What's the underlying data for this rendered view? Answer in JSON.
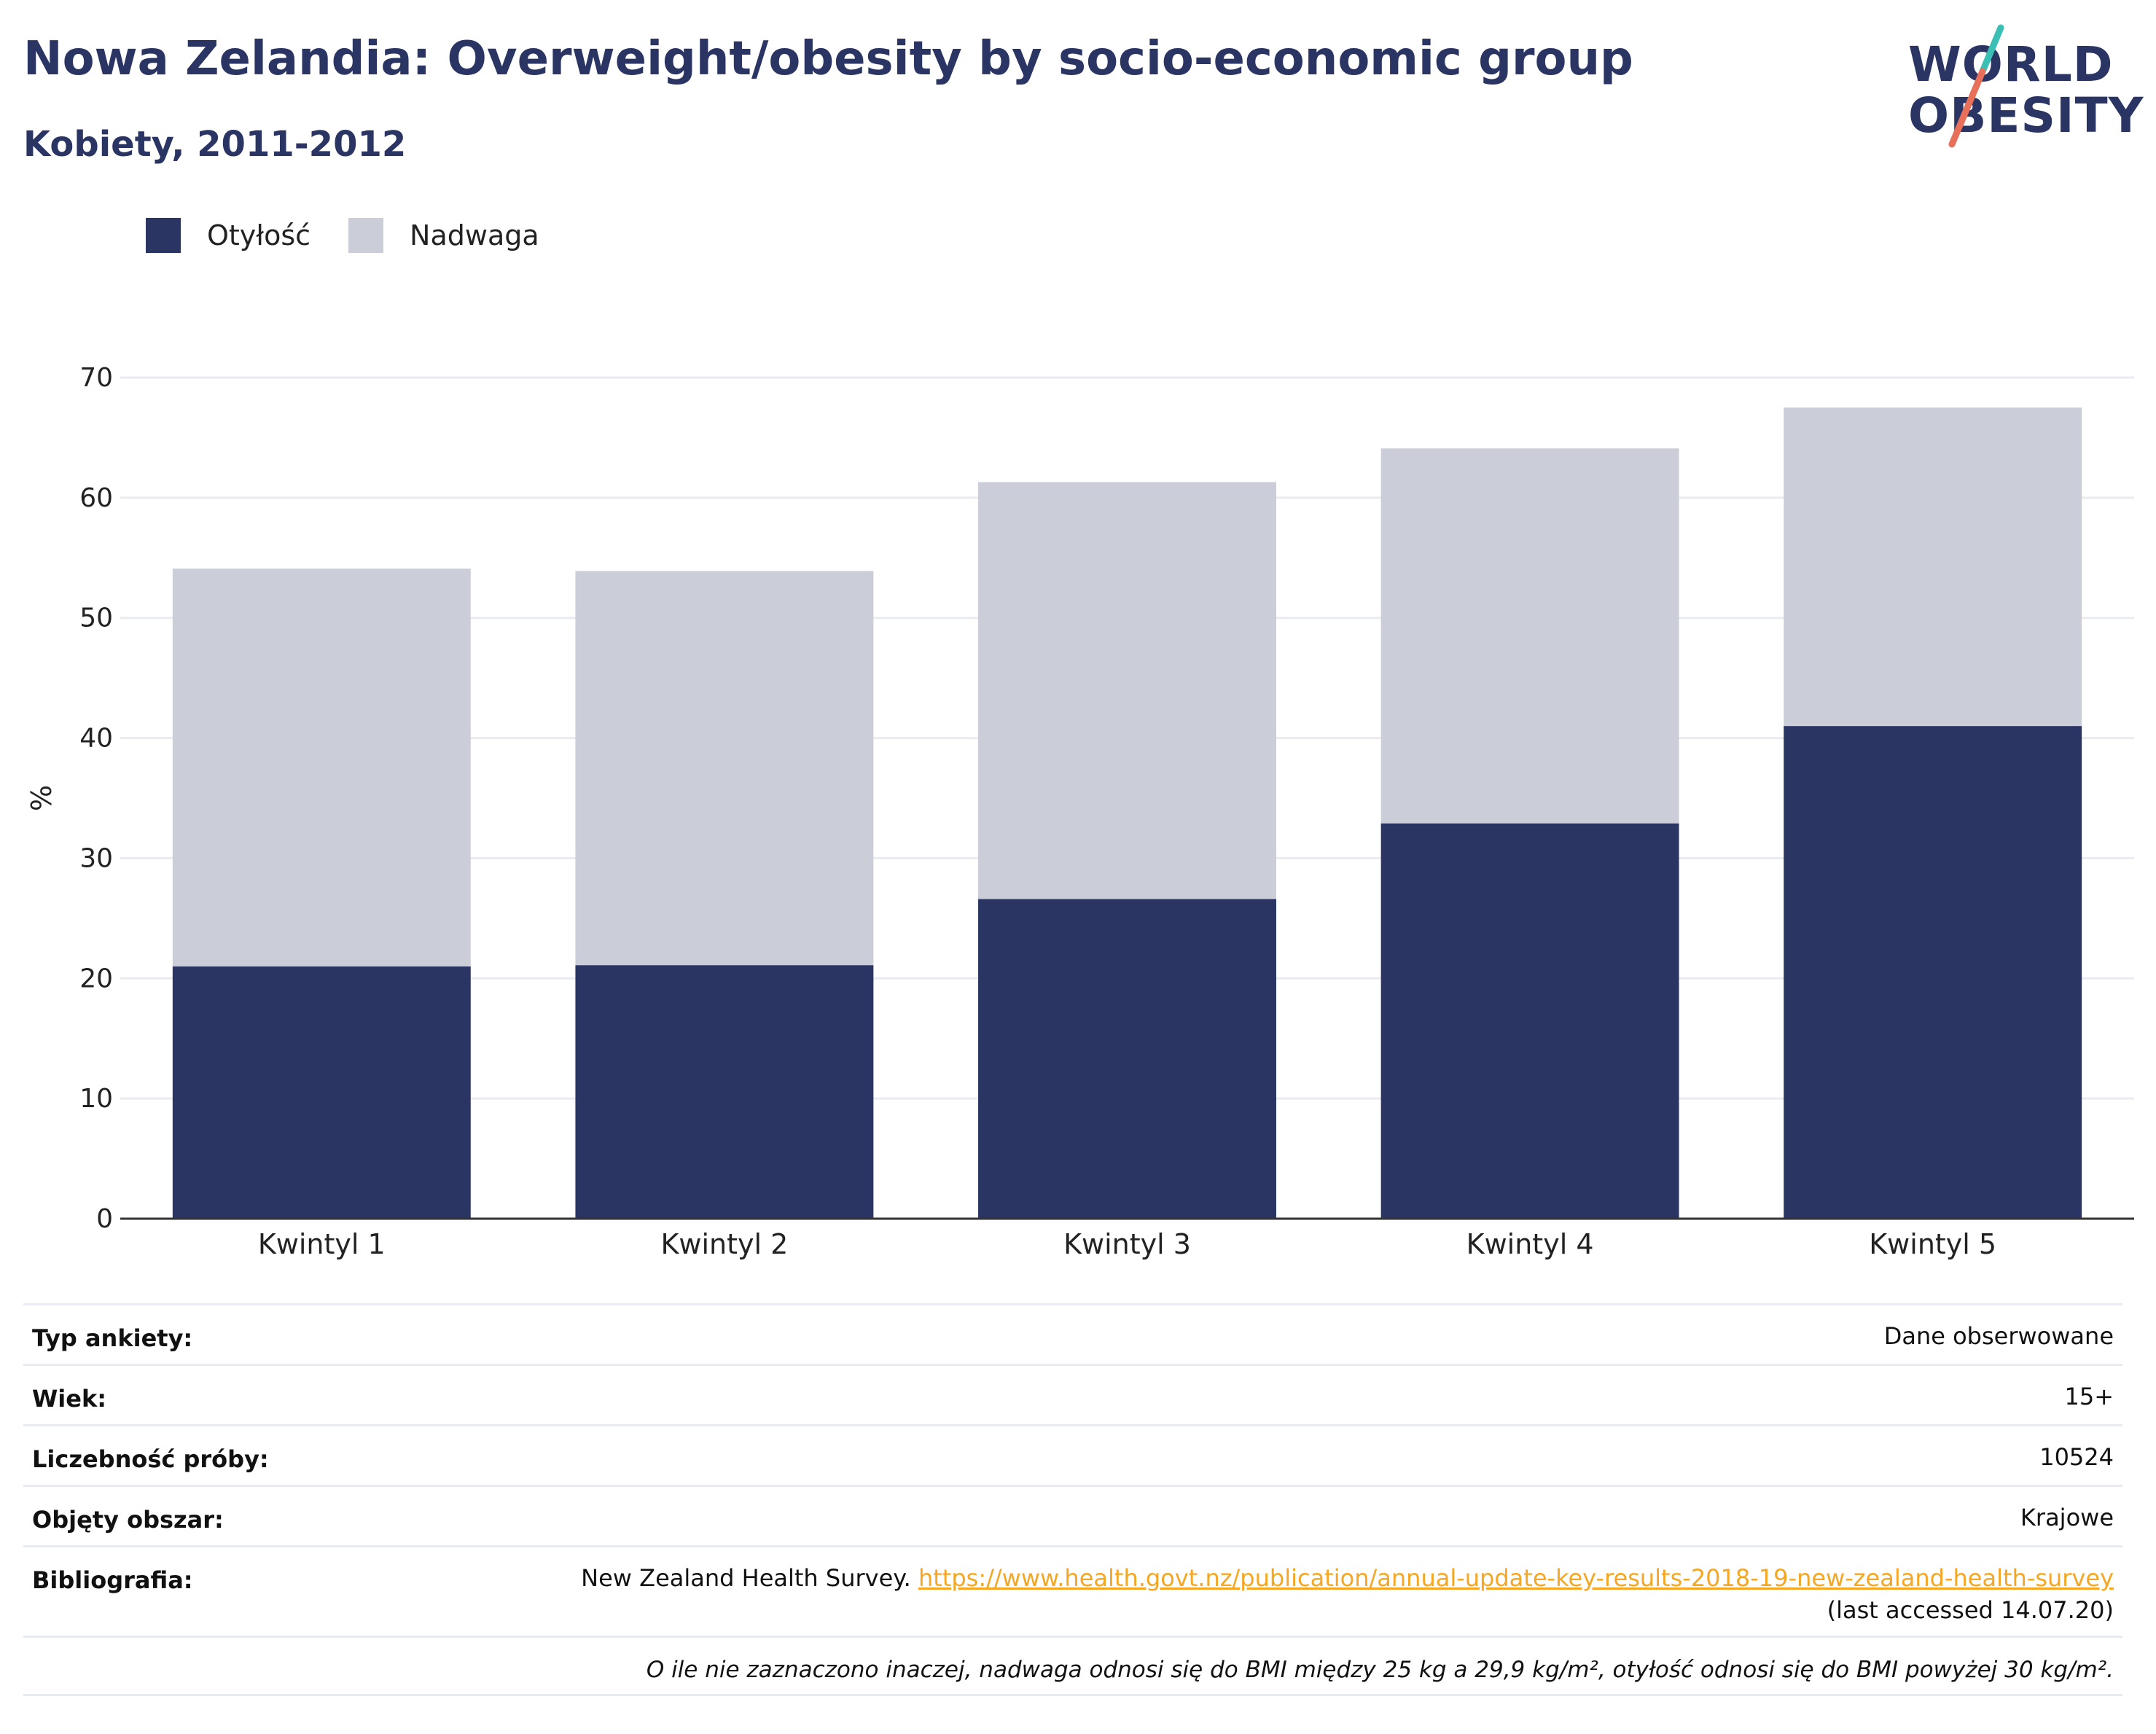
{
  "header": {
    "title": "Nowa Zelandia: Overweight/obesity by socio-economic group",
    "subtitle": "Kobiety, 2011-2012"
  },
  "logo": {
    "line1": "WORLD",
    "line2": "OBESITY",
    "slash_colors": [
      "#3bbfb5",
      "#e8705a"
    ]
  },
  "legend": [
    {
      "label": "Otyłość",
      "color": "#2a3563"
    },
    {
      "label": "Nadwaga",
      "color": "#cbcdd9"
    }
  ],
  "chart_data": {
    "type": "bar",
    "stacked": true,
    "categories": [
      "Kwintyl 1",
      "Kwintyl 2",
      "Kwintyl 3",
      "Kwintyl 4",
      "Kwintyl 5"
    ],
    "series": [
      {
        "name": "Otyłość",
        "color": "#2a3563",
        "values": [
          21.0,
          21.1,
          26.6,
          32.9,
          41.0
        ]
      },
      {
        "name": "Nadwaga",
        "color": "#cbcdd9",
        "values": [
          33.1,
          32.8,
          34.7,
          31.2,
          26.5
        ]
      }
    ],
    "ylabel": "%",
    "ylim": [
      0,
      70
    ],
    "yticks": [
      0,
      10,
      20,
      30,
      40,
      50,
      60,
      70
    ],
    "grid": true,
    "legend_position": "top-left"
  },
  "meta": {
    "survey_type": {
      "label": "Typ ankiety:",
      "value": "Dane obserwowane"
    },
    "age": {
      "label": "Wiek:",
      "value": "15+"
    },
    "sample_size": {
      "label": "Liczebność próby:",
      "value": "10524"
    },
    "area": {
      "label": "Objęty obszar:",
      "value": "Krajowe"
    },
    "bibliography": {
      "label": "Bibliografia:",
      "source": "New Zealand Health Survey.",
      "url": "https://www.health.govt.nz/publication/annual-update-key-results-2018-19-new-zealand-health-survey",
      "accessed": "(last accessed 14.07.20)"
    },
    "note": "O ile nie zaznaczono inaczej, nadwaga odnosi się do BMI między 25 kg a 29,9 kg/m², otyłość odnosi się do BMI powyżej 30 kg/m²."
  }
}
